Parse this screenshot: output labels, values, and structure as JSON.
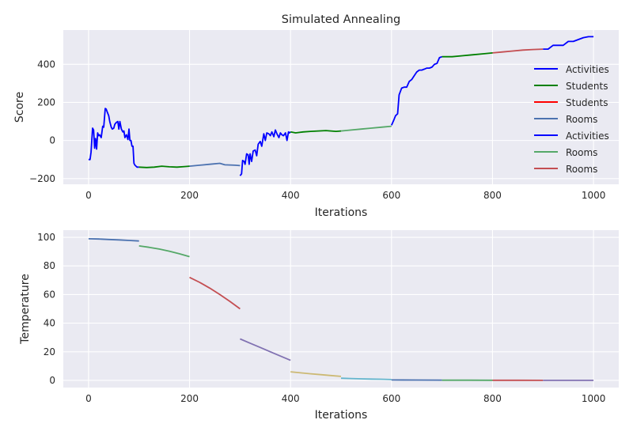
{
  "chart_data": [
    {
      "type": "line",
      "title": "Simulated Annealing",
      "xlabel": "Iterations",
      "ylabel": "Score",
      "xlim": [
        -50,
        1050
      ],
      "ylim": [
        -230,
        580
      ],
      "xticks": [
        0,
        200,
        400,
        600,
        800,
        1000
      ],
      "yticks": [
        -200,
        0,
        200,
        400
      ],
      "xtick_labels": [
        "0",
        "200",
        "400",
        "600",
        "800",
        "1000"
      ],
      "ytick_labels": [
        "−200",
        "0",
        "200",
        "400"
      ],
      "grid": true,
      "legend_position": "center-right",
      "series": [
        {
          "name": "Activities",
          "color": "#0000ff",
          "x": [
            0,
            3,
            5,
            8,
            10,
            12,
            14,
            16,
            18,
            20,
            22,
            25,
            28,
            30,
            33,
            35,
            37,
            40,
            42,
            45,
            47,
            50,
            52,
            55,
            58,
            60,
            62,
            65,
            68,
            70,
            72,
            75,
            78,
            80,
            82,
            84,
            86,
            88,
            90,
            92,
            94,
            96,
            98,
            100
          ],
          "y": [
            -100,
            -100,
            -60,
            65,
            55,
            -40,
            10,
            -45,
            40,
            25,
            30,
            15,
            75,
            70,
            168,
            165,
            150,
            130,
            100,
            70,
            60,
            65,
            85,
            95,
            100,
            60,
            100,
            60,
            45,
            50,
            15,
            30,
            5,
            60,
            0,
            0,
            -30,
            -30,
            -120,
            -130,
            -135,
            -140,
            -140,
            -140
          ]
        },
        {
          "name": "Students",
          "color": "#008000",
          "x": [
            100,
            115,
            130,
            145,
            160,
            175,
            190,
            200
          ],
          "y": [
            -140,
            -142,
            -140,
            -135,
            -138,
            -140,
            -137,
            -135
          ]
        },
        {
          "name": "Students",
          "color": "#ff0000",
          "x": [],
          "y": []
        },
        {
          "name": "Rooms",
          "color": "#4c72b0",
          "x": [
            200,
            220,
            240,
            260,
            270,
            290,
            300
          ],
          "y": [
            -135,
            -130,
            -125,
            -120,
            -128,
            -130,
            -132
          ]
        },
        {
          "name": "Activities",
          "color": "#0000ff",
          "x": [
            300,
            303,
            305,
            308,
            310,
            313,
            316,
            318,
            320,
            323,
            326,
            330,
            333,
            336,
            340,
            343,
            347,
            350,
            353,
            357,
            360,
            363,
            367,
            370,
            373,
            377,
            380,
            383,
            386,
            390,
            393,
            396,
            398,
            400
          ],
          "y": [
            -185,
            -175,
            -105,
            -110,
            -125,
            -70,
            -75,
            -125,
            -70,
            -110,
            -55,
            -50,
            -80,
            -20,
            -5,
            -30,
            35,
            0,
            40,
            35,
            25,
            45,
            20,
            55,
            35,
            15,
            40,
            30,
            25,
            40,
            0,
            45,
            40,
            45
          ]
        },
        {
          "name": "Students",
          "color": "#008000",
          "x": [
            400,
            410,
            425,
            440,
            455,
            470,
            480,
            490,
            500
          ],
          "y": [
            45,
            40,
            45,
            48,
            50,
            52,
            50,
            48,
            50
          ]
        },
        {
          "name": "Rooms",
          "color": "#55a868",
          "x": [
            500,
            520,
            540,
            560,
            580,
            600
          ],
          "y": [
            50,
            55,
            60,
            65,
            70,
            75
          ]
        },
        {
          "name": "Activities",
          "color": "#0000ff",
          "x": [
            600,
            605,
            608,
            612,
            615,
            620,
            625,
            630,
            635,
            640,
            645,
            650,
            655,
            660,
            665,
            670,
            675,
            680,
            685,
            690,
            695,
            700
          ],
          "y": [
            80,
            110,
            130,
            140,
            240,
            275,
            280,
            280,
            310,
            320,
            340,
            360,
            370,
            370,
            375,
            380,
            380,
            385,
            400,
            405,
            435,
            440
          ]
        },
        {
          "name": "Students",
          "color": "#008000",
          "x": [
            700,
            720,
            740,
            760,
            780,
            800
          ],
          "y": [
            440,
            440,
            445,
            450,
            455,
            460
          ]
        },
        {
          "name": "Rooms",
          "color": "#c44e52",
          "x": [
            800,
            820,
            840,
            860,
            880,
            900
          ],
          "y": [
            460,
            465,
            470,
            475,
            478,
            480
          ]
        },
        {
          "name": "Activities",
          "color": "#0000ff",
          "x": [
            900,
            910,
            920,
            930,
            940,
            950,
            960,
            970,
            980,
            990,
            1000
          ],
          "y": [
            480,
            480,
            500,
            500,
            500,
            520,
            520,
            530,
            540,
            545,
            545
          ]
        }
      ],
      "legend": [
        {
          "label": "Activities",
          "color": "#0000ff"
        },
        {
          "label": "Students",
          "color": "#008000"
        },
        {
          "label": "Students",
          "color": "#ff0000"
        },
        {
          "label": "Rooms",
          "color": "#4c72b0"
        },
        {
          "label": "Activities",
          "color": "#0000ff"
        },
        {
          "label": "Rooms",
          "color": "#55a868"
        },
        {
          "label": "Rooms",
          "color": "#c44e52"
        }
      ]
    },
    {
      "type": "line",
      "title": "",
      "xlabel": "Iterations",
      "ylabel": "Temperature",
      "xlim": [
        -50,
        1050
      ],
      "ylim": [
        -5,
        105
      ],
      "xticks": [
        0,
        200,
        400,
        600,
        800,
        1000
      ],
      "yticks": [
        0,
        20,
        40,
        60,
        80,
        100
      ],
      "xtick_labels": [
        "0",
        "200",
        "400",
        "600",
        "800",
        "1000"
      ],
      "ytick_labels": [
        "0",
        "20",
        "40",
        "60",
        "80",
        "100"
      ],
      "grid": true,
      "series": [
        {
          "color": "#4c72b0",
          "x": [
            0,
            20,
            40,
            60,
            80,
            100
          ],
          "y": [
            99,
            98.8,
            98.5,
            98.2,
            97.8,
            97.4
          ]
        },
        {
          "color": "#55a868",
          "x": [
            100,
            120,
            140,
            160,
            180,
            200
          ],
          "y": [
            94,
            93,
            91.8,
            90.3,
            88.5,
            86.5
          ]
        },
        {
          "color": "#c44e52",
          "x": [
            200,
            220,
            240,
            260,
            280,
            300
          ],
          "y": [
            72,
            68.5,
            64.5,
            60,
            55.2,
            50
          ]
        },
        {
          "color": "#8172b2",
          "x": [
            300,
            320,
            340,
            360,
            380,
            400
          ],
          "y": [
            29,
            26,
            23,
            20,
            17,
            14
          ]
        },
        {
          "color": "#ccb974",
          "x": [
            400,
            420,
            440,
            460,
            480,
            500
          ],
          "y": [
            6,
            5.3,
            4.6,
            4,
            3.4,
            2.8
          ]
        },
        {
          "color": "#64b5cd",
          "x": [
            500,
            520,
            540,
            560,
            580,
            600
          ],
          "y": [
            1.5,
            1.3,
            1.1,
            0.9,
            0.8,
            0.6
          ]
        },
        {
          "color": "#4c72b0",
          "x": [
            600,
            650,
            700
          ],
          "y": [
            0.3,
            0.25,
            0.2
          ]
        },
        {
          "color": "#55a868",
          "x": [
            700,
            750,
            800
          ],
          "y": [
            0.15,
            0.12,
            0.1
          ]
        },
        {
          "color": "#c44e52",
          "x": [
            800,
            850,
            900
          ],
          "y": [
            0.08,
            0.06,
            0.05
          ]
        },
        {
          "color": "#8172b2",
          "x": [
            900,
            950,
            1000
          ],
          "y": [
            0.04,
            0.03,
            0.02
          ]
        }
      ]
    }
  ]
}
